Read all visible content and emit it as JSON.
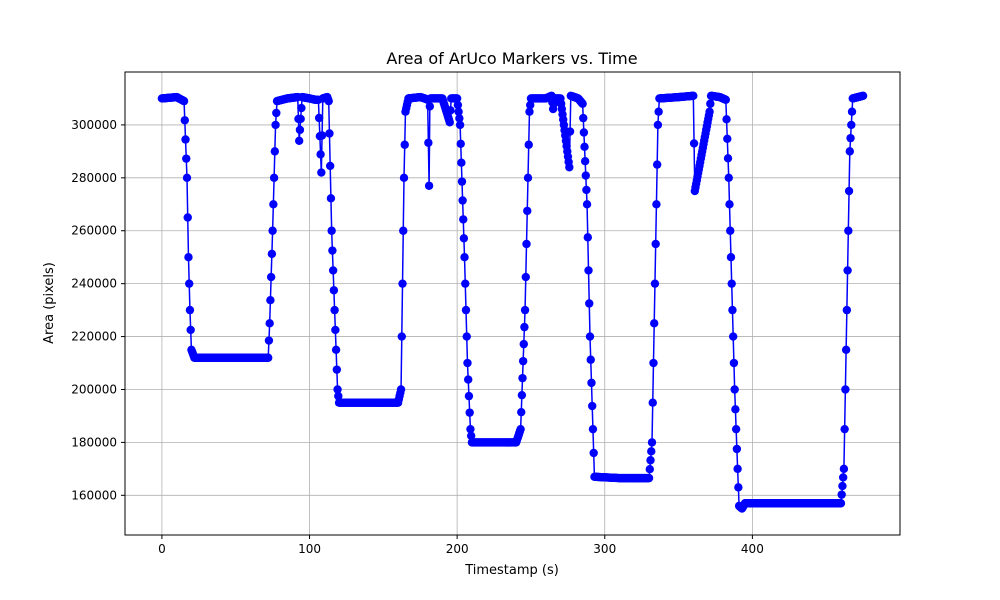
{
  "chart_data": {
    "type": "line",
    "title": "Area of ArUco Markers vs. Time",
    "xlabel": "Timestamp (s)",
    "ylabel": "Area (pixels)",
    "xlim": [
      -25,
      500
    ],
    "ylim": [
      145000,
      320000
    ],
    "xticks": [
      0,
      100,
      200,
      300,
      400
    ],
    "yticks": [
      160000,
      180000,
      200000,
      220000,
      240000,
      260000,
      280000,
      300000
    ],
    "grid": true,
    "marker": "circle",
    "series": [
      {
        "color": "#0000ff",
        "keypoints": [
          [
            0,
            310000
          ],
          [
            10,
            310500
          ],
          [
            15,
            309000
          ],
          [
            17,
            280000
          ],
          [
            18,
            250000
          ],
          [
            19,
            230000
          ],
          [
            20,
            215000
          ],
          [
            22,
            212000
          ],
          [
            40,
            212000
          ],
          [
            60,
            212000
          ],
          [
            72,
            212000
          ],
          [
            73,
            225000
          ],
          [
            75,
            260000
          ],
          [
            77,
            300000
          ],
          [
            78,
            309000
          ],
          [
            85,
            310000
          ],
          [
            92,
            310500
          ],
          [
            93,
            294000
          ],
          [
            95,
            310500
          ],
          [
            100,
            310000
          ],
          [
            104,
            309500
          ],
          [
            106,
            309500
          ],
          [
            108,
            282000
          ],
          [
            109,
            310000
          ],
          [
            112,
            310500
          ],
          [
            113,
            309000
          ],
          [
            115,
            260000
          ],
          [
            117,
            230000
          ],
          [
            119,
            200000
          ],
          [
            120,
            195000
          ],
          [
            140,
            195000
          ],
          [
            160,
            195000
          ],
          [
            162,
            200000
          ],
          [
            163,
            240000
          ],
          [
            164,
            280000
          ],
          [
            165,
            305000
          ],
          [
            167,
            310000
          ],
          [
            175,
            310500
          ],
          [
            178,
            310000
          ],
          [
            180,
            309500
          ],
          [
            181,
            277000
          ],
          [
            181.5,
            307000
          ],
          [
            182,
            310000
          ],
          [
            190,
            310000
          ],
          [
            195,
            301000
          ],
          [
            196,
            310000
          ],
          [
            200,
            310000
          ],
          [
            202,
            300000
          ],
          [
            205,
            250000
          ],
          [
            207,
            210000
          ],
          [
            209,
            185000
          ],
          [
            210,
            180000
          ],
          [
            225,
            180000
          ],
          [
            240,
            180000
          ],
          [
            243,
            185000
          ],
          [
            246,
            230000
          ],
          [
            248,
            280000
          ],
          [
            249,
            305000
          ],
          [
            250,
            310000
          ],
          [
            260,
            310000
          ],
          [
            264,
            311000
          ],
          [
            265,
            306000
          ],
          [
            266,
            310000
          ],
          [
            270,
            310000
          ],
          [
            276,
            284000
          ],
          [
            277,
            311000
          ],
          [
            282,
            310000
          ],
          [
            285,
            308000
          ],
          [
            288,
            270000
          ],
          [
            290,
            220000
          ],
          [
            292,
            185000
          ],
          [
            293,
            167000
          ],
          [
            310,
            166500
          ],
          [
            330,
            166500
          ],
          [
            332,
            180000
          ],
          [
            334,
            240000
          ],
          [
            336,
            300000
          ],
          [
            337,
            310000
          ],
          [
            350,
            310500
          ],
          [
            360,
            311000
          ],
          [
            361,
            275000
          ],
          [
            371,
            305000
          ],
          [
            372,
            311000
          ],
          [
            378,
            310500
          ],
          [
            382,
            309500
          ],
          [
            384,
            280000
          ],
          [
            386,
            240000
          ],
          [
            388,
            200000
          ],
          [
            390,
            170000
          ],
          [
            391,
            156000
          ],
          [
            393,
            155000
          ],
          [
            395,
            157000
          ],
          [
            420,
            157000
          ],
          [
            450,
            157000
          ],
          [
            460,
            157000
          ],
          [
            462,
            170000
          ],
          [
            464,
            230000
          ],
          [
            466,
            290000
          ],
          [
            468,
            310000
          ],
          [
            475,
            311000
          ]
        ]
      }
    ]
  }
}
